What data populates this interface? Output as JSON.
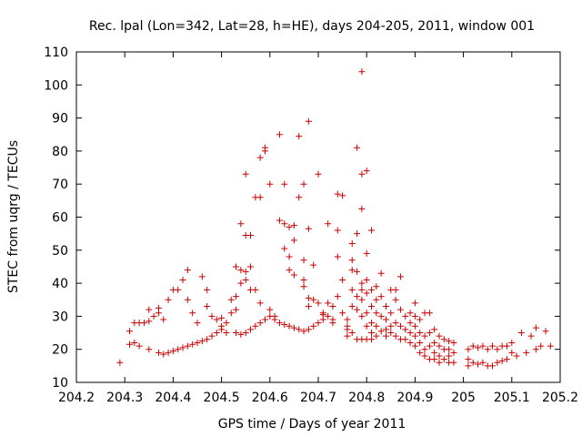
{
  "chart_data": {
    "type": "scatter",
    "title": "Rec. lpal (Lon=342, Lat=28, h=HE), days 204-205, 2011, window 001",
    "xlabel": "GPS time / Days of year 2011",
    "ylabel": "STEC from uqrg / TECUs",
    "xlim": [
      204.2,
      205.2
    ],
    "ylim": [
      10,
      110
    ],
    "xticks": [
      "204.2",
      "204.3",
      "204.4",
      "204.5",
      "204.6",
      "204.7",
      "204.8",
      "204.9",
      "205",
      "205.1",
      "205.2"
    ],
    "yticks": [
      "10",
      "20",
      "30",
      "40",
      "50",
      "60",
      "70",
      "80",
      "90",
      "100",
      "110"
    ],
    "grid": false,
    "marker": "plus",
    "color": "#cc0000",
    "points": [
      [
        204.29,
        16
      ],
      [
        204.31,
        21.5
      ],
      [
        204.32,
        22
      ],
      [
        204.33,
        21
      ],
      [
        204.35,
        20
      ],
      [
        204.37,
        19
      ],
      [
        204.38,
        18.5
      ],
      [
        204.39,
        19
      ],
      [
        204.4,
        19.5
      ],
      [
        204.41,
        20
      ],
      [
        204.42,
        20.5
      ],
      [
        204.43,
        21
      ],
      [
        204.44,
        21.5
      ],
      [
        204.45,
        22
      ],
      [
        204.46,
        22.5
      ],
      [
        204.47,
        23
      ],
      [
        204.48,
        24
      ],
      [
        204.49,
        25
      ],
      [
        204.5,
        26
      ],
      [
        204.51,
        25
      ],
      [
        204.53,
        25
      ],
      [
        204.54,
        24.5
      ],
      [
        204.55,
        25
      ],
      [
        204.56,
        26
      ],
      [
        204.57,
        27
      ],
      [
        204.58,
        28
      ],
      [
        204.59,
        29
      ],
      [
        204.6,
        30
      ],
      [
        204.61,
        29
      ],
      [
        204.62,
        28
      ],
      [
        204.63,
        27.5
      ],
      [
        204.64,
        27
      ],
      [
        204.65,
        26.5
      ],
      [
        204.66,
        26
      ],
      [
        204.67,
        25.5
      ],
      [
        204.68,
        26
      ],
      [
        204.69,
        27
      ],
      [
        204.7,
        28
      ],
      [
        204.71,
        29
      ],
      [
        204.72,
        30
      ],
      [
        204.31,
        25.5
      ],
      [
        204.32,
        28
      ],
      [
        204.33,
        28
      ],
      [
        204.34,
        28
      ],
      [
        204.35,
        28.5
      ],
      [
        204.36,
        30
      ],
      [
        204.37,
        31
      ],
      [
        204.38,
        29
      ],
      [
        204.35,
        32
      ],
      [
        204.37,
        32.5
      ],
      [
        204.39,
        35
      ],
      [
        204.4,
        38
      ],
      [
        204.41,
        38
      ],
      [
        204.42,
        41
      ],
      [
        204.43,
        44
      ],
      [
        204.43,
        35
      ],
      [
        204.44,
        31
      ],
      [
        204.45,
        28
      ],
      [
        204.46,
        42
      ],
      [
        204.47,
        38
      ],
      [
        204.47,
        33
      ],
      [
        204.48,
        30
      ],
      [
        204.49,
        29
      ],
      [
        204.5,
        29.5
      ],
      [
        204.5,
        27
      ],
      [
        204.51,
        28
      ],
      [
        204.52,
        31
      ],
      [
        204.52,
        35
      ],
      [
        204.53,
        36
      ],
      [
        204.53,
        32
      ],
      [
        204.54,
        40
      ],
      [
        204.54,
        44
      ],
      [
        204.53,
        45
      ],
      [
        204.54,
        58
      ],
      [
        204.55,
        54.5
      ],
      [
        204.56,
        54.5
      ],
      [
        204.55,
        43.5
      ],
      [
        204.56,
        45
      ],
      [
        204.55,
        41
      ],
      [
        204.56,
        38
      ],
      [
        204.55,
        73
      ],
      [
        204.57,
        66
      ],
      [
        204.58,
        66
      ],
      [
        204.58,
        78
      ],
      [
        204.59,
        80
      ],
      [
        204.59,
        81
      ],
      [
        204.57,
        38
      ],
      [
        204.58,
        34
      ],
      [
        204.6,
        32
      ],
      [
        204.61,
        30
      ],
      [
        204.6,
        70
      ],
      [
        204.62,
        85
      ],
      [
        204.63,
        70
      ],
      [
        204.62,
        59
      ],
      [
        204.63,
        58
      ],
      [
        204.63,
        50.5
      ],
      [
        204.64,
        57
      ],
      [
        204.64,
        48
      ],
      [
        204.64,
        44
      ],
      [
        204.65,
        42.5
      ],
      [
        204.65,
        53
      ],
      [
        204.65,
        57.5
      ],
      [
        204.66,
        84.5
      ],
      [
        204.66,
        66
      ],
      [
        204.67,
        70
      ],
      [
        204.67,
        39
      ],
      [
        204.67,
        41
      ],
      [
        204.67,
        47
      ],
      [
        204.68,
        33
      ],
      [
        204.68,
        56.5
      ],
      [
        204.68,
        89
      ],
      [
        204.68,
        35.5
      ],
      [
        204.69,
        35
      ],
      [
        204.69,
        45.5
      ],
      [
        204.7,
        34
      ],
      [
        204.7,
        73
      ],
      [
        204.71,
        31
      ],
      [
        204.71,
        30.5
      ],
      [
        204.72,
        58
      ],
      [
        204.72,
        34
      ],
      [
        204.73,
        33
      ],
      [
        204.73,
        29
      ],
      [
        204.73,
        28
      ],
      [
        204.74,
        67
      ],
      [
        204.74,
        56
      ],
      [
        204.74,
        48
      ],
      [
        204.74,
        36
      ],
      [
        204.75,
        66.5
      ],
      [
        204.75,
        41
      ],
      [
        204.75,
        31
      ],
      [
        204.76,
        29
      ],
      [
        204.76,
        27
      ],
      [
        204.76,
        26
      ],
      [
        204.76,
        24
      ],
      [
        204.77,
        47
      ],
      [
        204.77,
        52
      ],
      [
        204.77,
        44
      ],
      [
        204.77,
        38
      ],
      [
        204.77,
        33
      ],
      [
        204.77,
        25
      ],
      [
        204.78,
        81
      ],
      [
        204.78,
        55
      ],
      [
        204.78,
        43.5
      ],
      [
        204.78,
        36
      ],
      [
        204.78,
        32
      ],
      [
        204.78,
        23
      ],
      [
        204.79,
        104
      ],
      [
        204.79,
        73
      ],
      [
        204.79,
        62.5
      ],
      [
        204.79,
        40
      ],
      [
        204.79,
        38
      ],
      [
        204.79,
        35
      ],
      [
        204.79,
        30
      ],
      [
        204.79,
        23
      ],
      [
        204.8,
        74
      ],
      [
        204.8,
        49
      ],
      [
        204.8,
        41
      ],
      [
        204.8,
        37
      ],
      [
        204.8,
        31
      ],
      [
        204.8,
        27
      ],
      [
        204.8,
        23
      ],
      [
        204.81,
        56
      ],
      [
        204.81,
        38
      ],
      [
        204.81,
        33
      ],
      [
        204.81,
        28
      ],
      [
        204.81,
        25
      ],
      [
        204.81,
        23
      ],
      [
        204.82,
        39
      ],
      [
        204.82,
        35
      ],
      [
        204.82,
        31
      ],
      [
        204.82,
        27
      ],
      [
        204.82,
        24
      ],
      [
        204.83,
        43
      ],
      [
        204.83,
        36
      ],
      [
        204.83,
        30
      ],
      [
        204.83,
        25.5
      ],
      [
        204.84,
        33
      ],
      [
        204.84,
        29
      ],
      [
        204.84,
        26
      ],
      [
        204.84,
        24
      ],
      [
        204.85,
        38
      ],
      [
        204.85,
        31
      ],
      [
        204.85,
        27
      ],
      [
        204.85,
        25
      ],
      [
        204.86,
        38
      ],
      [
        204.86,
        35
      ],
      [
        204.86,
        28
      ],
      [
        204.86,
        24
      ],
      [
        204.87,
        42
      ],
      [
        204.87,
        32
      ],
      [
        204.87,
        27
      ],
      [
        204.87,
        23
      ],
      [
        204.88,
        30
      ],
      [
        204.88,
        26
      ],
      [
        204.88,
        23
      ],
      [
        204.89,
        31
      ],
      [
        204.89,
        28
      ],
      [
        204.89,
        25
      ],
      [
        204.89,
        22
      ],
      [
        204.9,
        34
      ],
      [
        204.9,
        30
      ],
      [
        204.9,
        27
      ],
      [
        204.9,
        24
      ],
      [
        204.9,
        21
      ],
      [
        204.91,
        29
      ],
      [
        204.91,
        25
      ],
      [
        204.91,
        22
      ],
      [
        204.91,
        19
      ],
      [
        204.92,
        31
      ],
      [
        204.92,
        24
      ],
      [
        204.92,
        20
      ],
      [
        204.92,
        18
      ],
      [
        204.93,
        31
      ],
      [
        204.93,
        25
      ],
      [
        204.93,
        21
      ],
      [
        204.93,
        17
      ],
      [
        204.94,
        26
      ],
      [
        204.94,
        22
      ],
      [
        204.94,
        19
      ],
      [
        204.94,
        17
      ],
      [
        204.95,
        24
      ],
      [
        204.95,
        21
      ],
      [
        204.95,
        18
      ],
      [
        204.95,
        16
      ],
      [
        204.96,
        23
      ],
      [
        204.96,
        20
      ],
      [
        204.96,
        17
      ],
      [
        204.97,
        22.5
      ],
      [
        204.97,
        20
      ],
      [
        204.97,
        18
      ],
      [
        204.97,
        16
      ],
      [
        204.98,
        22
      ],
      [
        204.98,
        19
      ],
      [
        204.98,
        16
      ],
      [
        205.01,
        20
      ],
      [
        205.01,
        17
      ],
      [
        205.01,
        15
      ],
      [
        205.02,
        21
      ],
      [
        205.02,
        16
      ],
      [
        205.03,
        20.5
      ],
      [
        205.03,
        15.5
      ],
      [
        205.04,
        21
      ],
      [
        205.04,
        16
      ],
      [
        205.05,
        20
      ],
      [
        205.05,
        15
      ],
      [
        205.06,
        21
      ],
      [
        205.06,
        15
      ],
      [
        205.07,
        20
      ],
      [
        205.07,
        16
      ],
      [
        205.08,
        21
      ],
      [
        205.08,
        16.5
      ],
      [
        205.09,
        21
      ],
      [
        205.09,
        17
      ],
      [
        205.1,
        22
      ],
      [
        205.1,
        19
      ],
      [
        205.11,
        18
      ],
      [
        205.12,
        25
      ],
      [
        205.13,
        19
      ],
      [
        205.14,
        24
      ],
      [
        205.15,
        20
      ],
      [
        205.15,
        26.5
      ],
      [
        205.16,
        21
      ],
      [
        205.17,
        25.5
      ],
      [
        205.18,
        21
      ]
    ]
  }
}
